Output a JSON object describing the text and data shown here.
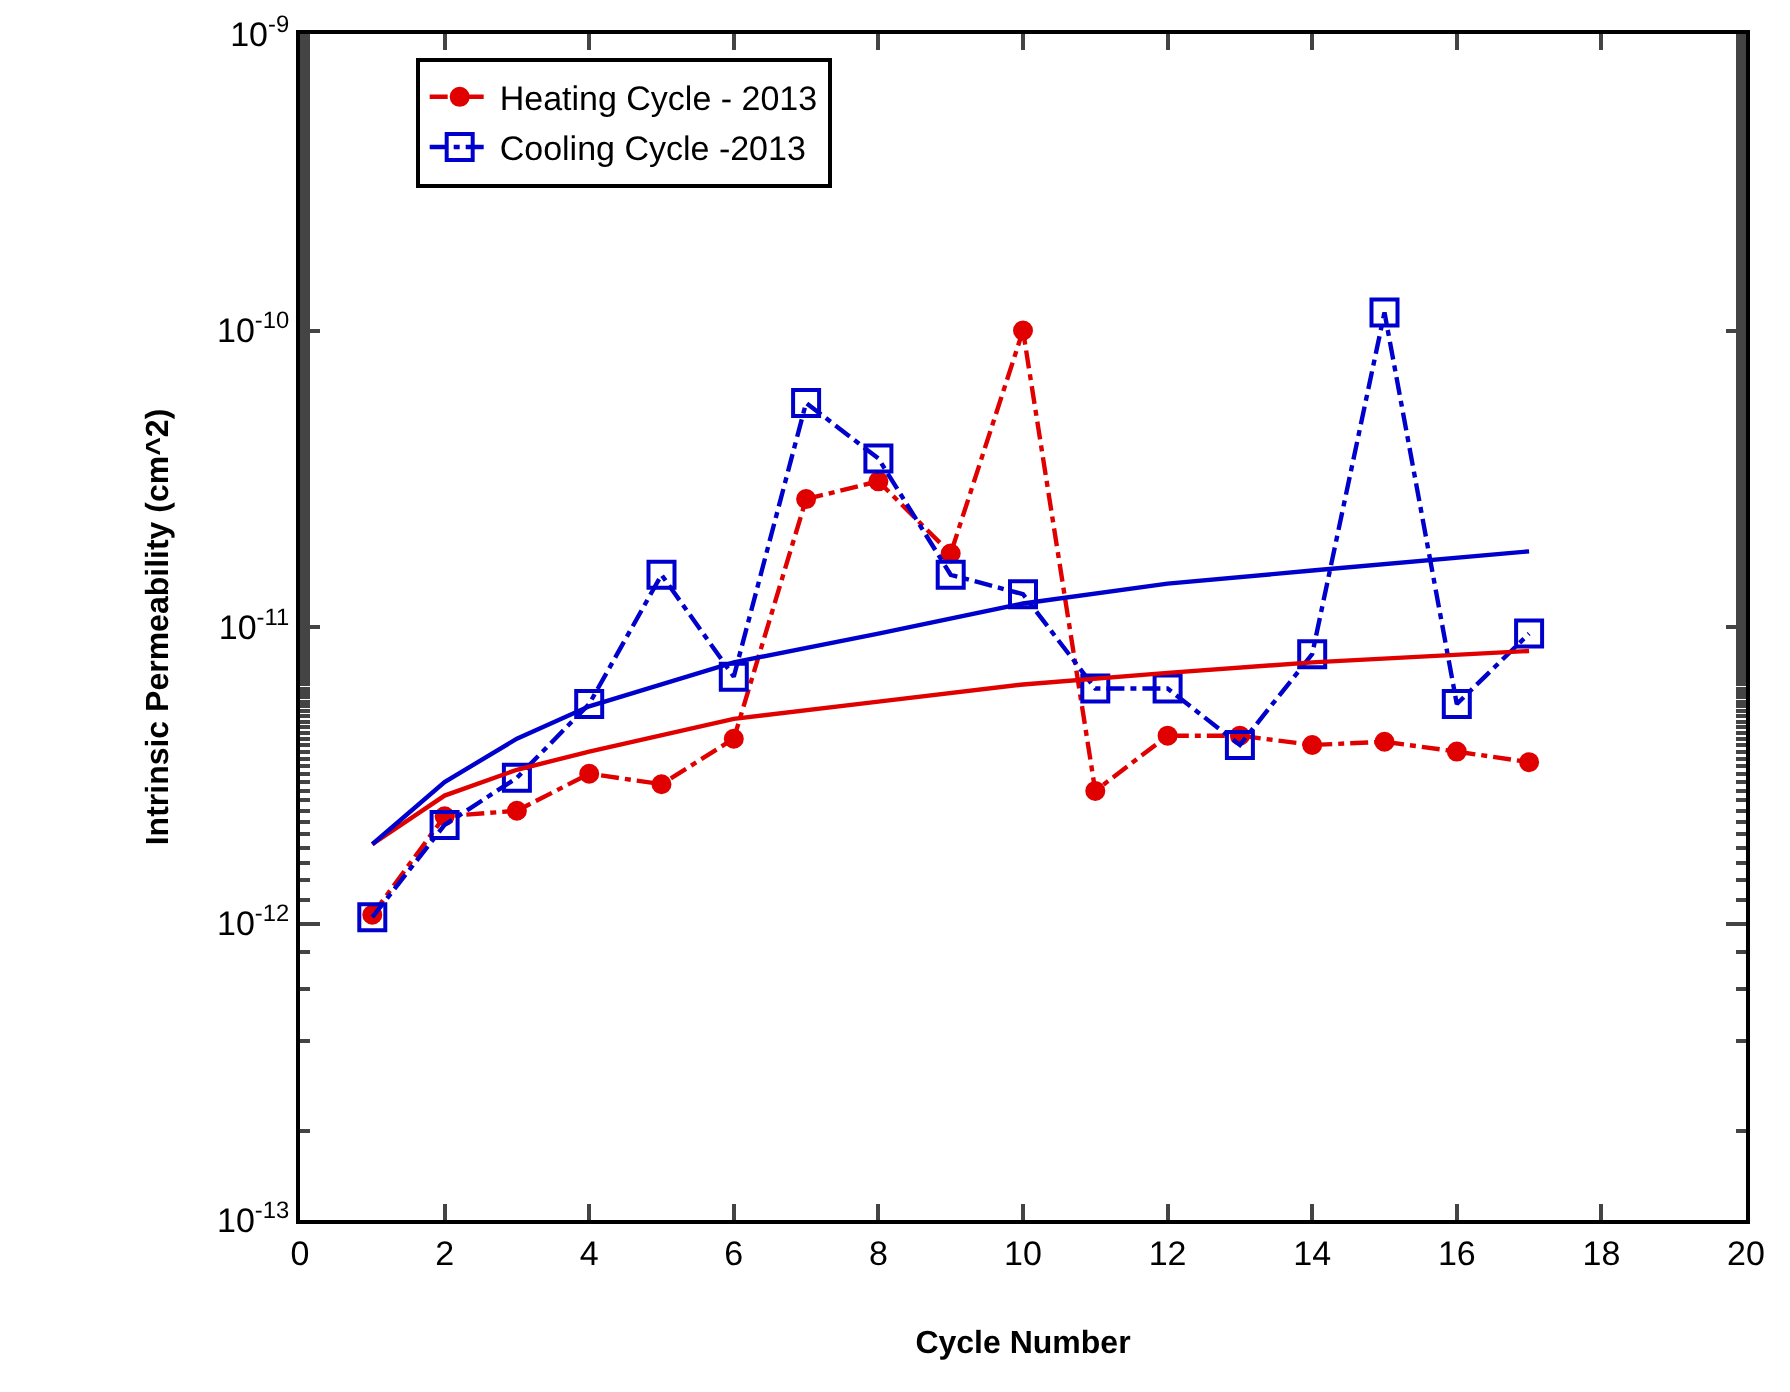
{
  "chart_data": {
    "type": "line",
    "xlabel": "Cycle Number",
    "ylabel": "Intrinsic Permeability (cm^2)",
    "log": "y",
    "grid": false,
    "legend": "top left",
    "xlim": [
      0,
      20
    ],
    "xticks": [
      0,
      2,
      4,
      6,
      8,
      10,
      12,
      14,
      16,
      18,
      20
    ],
    "ylim": [
      1e-13,
      1e-09
    ],
    "yticks": [
      {
        "value": 1e-13,
        "label": "10$^{-13}$"
      },
      {
        "value": 1e-12,
        "label": "10$^{-12}$"
      },
      {
        "value": 1e-11,
        "label": "10$^{-11}$"
      },
      {
        "value": 1e-10,
        "label": "10$^{-10}$"
      },
      {
        "value": 1e-09,
        "label": "10$^{-9}$"
      }
    ],
    "series": [
      {
        "name": "Heating Cycle - 2013",
        "color": "#e00000",
        "marker": "circle",
        "line_style": "dashed",
        "x": [
          1,
          2,
          3,
          4,
          5,
          6,
          7,
          8,
          9,
          10,
          11,
          12,
          13,
          14,
          15,
          16,
          17
        ],
        "values": [
          1.07e-12,
          2.3e-12,
          2.4e-12,
          3.2e-12,
          2.95e-12,
          4.2e-12,
          2.7e-11,
          3.1e-11,
          1.77e-11,
          1e-10,
          2.8e-12,
          4.3e-12,
          4.3e-12,
          4e-12,
          4.1e-12,
          3.8e-12,
          3.5e-12
        ]
      },
      {
        "name": "Cooling Cycle -2013",
        "color": "#0000cc",
        "marker": "square",
        "line_style": "dashed",
        "x": [
          1,
          2,
          3,
          4,
          5,
          6,
          7,
          8,
          9,
          10,
          11,
          12,
          13,
          14,
          15,
          16,
          17
        ],
        "values": [
          1.05e-12,
          2.15e-12,
          3.1e-12,
          5.5e-12,
          1.5e-11,
          6.8e-12,
          5.7e-11,
          3.7e-11,
          1.5e-11,
          1.29e-11,
          6.2e-12,
          6.2e-12,
          4e-12,
          8.1e-12,
          1.15e-10,
          5.5e-12,
          9.5e-12
        ]
      },
      {
        "color": "#e00000",
        "marker": "none",
        "line_style": "solid",
        "x": [
          1,
          2,
          3,
          4,
          6,
          8,
          10,
          12,
          14,
          17
        ],
        "values": [
          1.85e-12,
          2.7e-12,
          3.3e-12,
          3.8e-12,
          4.9e-12,
          5.6e-12,
          6.4e-12,
          7e-12,
          7.6e-12,
          8.3e-12
        ]
      },
      {
        "color": "#0000cc",
        "marker": "none",
        "line_style": "solid",
        "x": [
          1,
          2,
          3,
          4,
          6,
          8,
          10,
          12,
          14,
          17
        ],
        "values": [
          1.85e-12,
          3e-12,
          4.2e-12,
          5.4e-12,
          7.6e-12,
          9.5e-12,
          1.2e-11,
          1.4e-11,
          1.55e-11,
          1.8e-11
        ]
      }
    ]
  }
}
